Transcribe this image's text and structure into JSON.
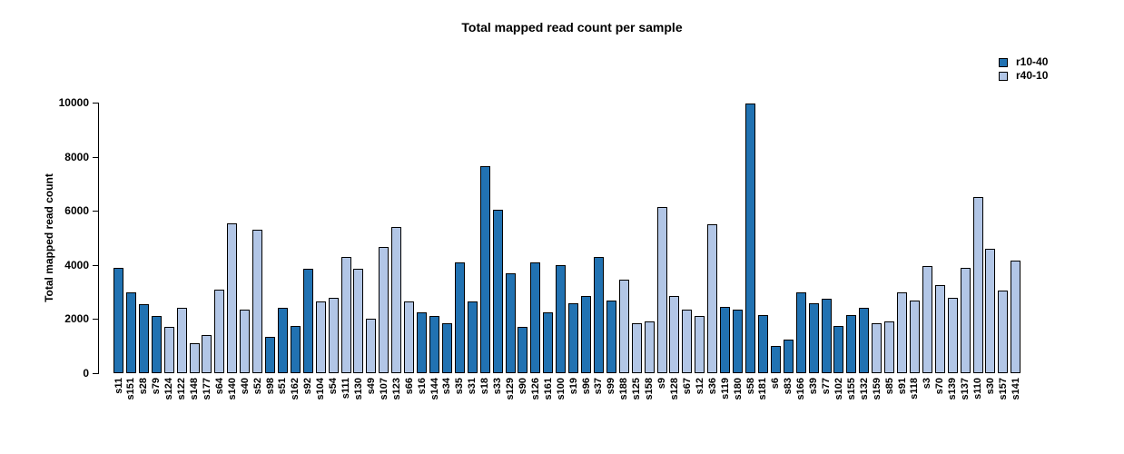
{
  "title": "Total mapped read count per sample",
  "legend": {
    "items": [
      {
        "label": "r10-40",
        "color": "#2172b2"
      },
      {
        "label": "r40-10",
        "color": "#b2c6e6"
      }
    ]
  },
  "chart_data": {
    "type": "bar",
    "title": "Total mapped read count per sample",
    "xlabel": "",
    "ylabel": "Total mapped read count",
    "ylim": [
      0,
      10000
    ],
    "yticks": [
      0,
      2000,
      4000,
      6000,
      8000,
      10000
    ],
    "grid": false,
    "legend_position": "top-right",
    "series_colors": {
      "r10-40": "#2172b2",
      "r40-10": "#b2c6e6"
    },
    "bar_border_color": "#000000",
    "samples": [
      {
        "name": "s11",
        "group": "r10-40",
        "value": 3900
      },
      {
        "name": "s151",
        "group": "r10-40",
        "value": 3000
      },
      {
        "name": "s28",
        "group": "r10-40",
        "value": 2550
      },
      {
        "name": "s79",
        "group": "r10-40",
        "value": 2100
      },
      {
        "name": "s124",
        "group": "r40-10",
        "value": 1700
      },
      {
        "name": "s122",
        "group": "r40-10",
        "value": 2400
      },
      {
        "name": "s148",
        "group": "r40-10",
        "value": 1100
      },
      {
        "name": "s177",
        "group": "r40-10",
        "value": 1400
      },
      {
        "name": "s64",
        "group": "r40-10",
        "value": 3100
      },
      {
        "name": "s140",
        "group": "r40-10",
        "value": 5550
      },
      {
        "name": "s40",
        "group": "r40-10",
        "value": 2350
      },
      {
        "name": "s52",
        "group": "r40-10",
        "value": 5300
      },
      {
        "name": "s98",
        "group": "r10-40",
        "value": 1350
      },
      {
        "name": "s51",
        "group": "r10-40",
        "value": 2400
      },
      {
        "name": "s162",
        "group": "r10-40",
        "value": 1750
      },
      {
        "name": "s92",
        "group": "r10-40",
        "value": 3850
      },
      {
        "name": "s104",
        "group": "r40-10",
        "value": 2650
      },
      {
        "name": "s54",
        "group": "r40-10",
        "value": 2800
      },
      {
        "name": "s111",
        "group": "r40-10",
        "value": 4300
      },
      {
        "name": "s130",
        "group": "r40-10",
        "value": 3850
      },
      {
        "name": "s49",
        "group": "r40-10",
        "value": 2000
      },
      {
        "name": "s107",
        "group": "r40-10",
        "value": 4650
      },
      {
        "name": "s123",
        "group": "r40-10",
        "value": 5400
      },
      {
        "name": "s66",
        "group": "r40-10",
        "value": 2650
      },
      {
        "name": "s16",
        "group": "r10-40",
        "value": 2250
      },
      {
        "name": "s144",
        "group": "r10-40",
        "value": 2100
      },
      {
        "name": "s34",
        "group": "r10-40",
        "value": 1850
      },
      {
        "name": "s35",
        "group": "r10-40",
        "value": 4100
      },
      {
        "name": "s31",
        "group": "r10-40",
        "value": 2650
      },
      {
        "name": "s18",
        "group": "r10-40",
        "value": 7650
      },
      {
        "name": "s33",
        "group": "r10-40",
        "value": 6050
      },
      {
        "name": "s129",
        "group": "r10-40",
        "value": 3700
      },
      {
        "name": "s90",
        "group": "r10-40",
        "value": 1700
      },
      {
        "name": "s126",
        "group": "r10-40",
        "value": 4100
      },
      {
        "name": "s161",
        "group": "r10-40",
        "value": 2250
      },
      {
        "name": "s100",
        "group": "r10-40",
        "value": 4000
      },
      {
        "name": "s19",
        "group": "r10-40",
        "value": 2600
      },
      {
        "name": "s96",
        "group": "r10-40",
        "value": 2850
      },
      {
        "name": "s37",
        "group": "r10-40",
        "value": 4300
      },
      {
        "name": "s99",
        "group": "r10-40",
        "value": 2700
      },
      {
        "name": "s188",
        "group": "r40-10",
        "value": 3450
      },
      {
        "name": "s125",
        "group": "r40-10",
        "value": 1850
      },
      {
        "name": "s158",
        "group": "r40-10",
        "value": 1900
      },
      {
        "name": "s9",
        "group": "r40-10",
        "value": 6150
      },
      {
        "name": "s128",
        "group": "r40-10",
        "value": 2850
      },
      {
        "name": "s67",
        "group": "r40-10",
        "value": 2350
      },
      {
        "name": "s12",
        "group": "r40-10",
        "value": 2100
      },
      {
        "name": "s36",
        "group": "r40-10",
        "value": 5500
      },
      {
        "name": "s119",
        "group": "r10-40",
        "value": 2450
      },
      {
        "name": "s180",
        "group": "r10-40",
        "value": 2350
      },
      {
        "name": "s58",
        "group": "r10-40",
        "value": 9950
      },
      {
        "name": "s181",
        "group": "r10-40",
        "value": 2150
      },
      {
        "name": "s6",
        "group": "r10-40",
        "value": 1000
      },
      {
        "name": "s83",
        "group": "r10-40",
        "value": 1250
      },
      {
        "name": "s166",
        "group": "r10-40",
        "value": 3000
      },
      {
        "name": "s39",
        "group": "r10-40",
        "value": 2600
      },
      {
        "name": "s77",
        "group": "r10-40",
        "value": 2750
      },
      {
        "name": "s102",
        "group": "r10-40",
        "value": 1750
      },
      {
        "name": "s155",
        "group": "r10-40",
        "value": 2150
      },
      {
        "name": "s132",
        "group": "r10-40",
        "value": 2400
      },
      {
        "name": "s159",
        "group": "r40-10",
        "value": 1850
      },
      {
        "name": "s85",
        "group": "r40-10",
        "value": 1900
      },
      {
        "name": "s91",
        "group": "r40-10",
        "value": 3000
      },
      {
        "name": "s118",
        "group": "r40-10",
        "value": 2700
      },
      {
        "name": "s3",
        "group": "r40-10",
        "value": 3950
      },
      {
        "name": "s70",
        "group": "r40-10",
        "value": 3250
      },
      {
        "name": "s139",
        "group": "r40-10",
        "value": 2800
      },
      {
        "name": "s137",
        "group": "r40-10",
        "value": 3900
      },
      {
        "name": "s110",
        "group": "r40-10",
        "value": 6500
      },
      {
        "name": "s30",
        "group": "r40-10",
        "value": 4600
      },
      {
        "name": "s157",
        "group": "r40-10",
        "value": 3050
      },
      {
        "name": "s141",
        "group": "r40-10",
        "value": 4150
      }
    ]
  }
}
